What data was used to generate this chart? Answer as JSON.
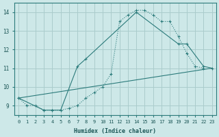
{
  "xlabel": "Humidex (Indice chaleur)",
  "background_color": "#cde8e8",
  "grid_color": "#aacccc",
  "line_color": "#2a7a7a",
  "xlim": [
    -0.5,
    23.5
  ],
  "ylim": [
    8.5,
    14.5
  ],
  "xticks": [
    0,
    1,
    2,
    3,
    4,
    5,
    6,
    7,
    8,
    9,
    10,
    11,
    12,
    13,
    14,
    15,
    16,
    17,
    18,
    19,
    20,
    21,
    22,
    23
  ],
  "yticks": [
    9,
    10,
    11,
    12,
    13,
    14
  ],
  "series1_x": [
    0,
    1,
    2,
    3,
    4,
    5,
    6,
    7,
    8,
    9,
    10,
    11,
    12,
    13,
    14,
    15,
    16,
    17,
    18,
    19,
    20,
    21,
    22
  ],
  "series1_y": [
    9.4,
    9.0,
    9.0,
    8.75,
    8.75,
    8.75,
    8.85,
    9.0,
    9.4,
    9.7,
    10.0,
    10.7,
    13.5,
    13.85,
    14.1,
    14.1,
    13.85,
    13.5,
    13.5,
    12.7,
    11.8,
    11.1,
    11.0
  ],
  "series2_x": [
    0,
    3,
    4,
    5,
    7,
    8,
    14,
    19,
    20,
    22,
    23
  ],
  "series2_y": [
    9.4,
    8.75,
    8.75,
    8.75,
    11.1,
    11.5,
    14.0,
    12.3,
    12.3,
    11.1,
    11.0
  ],
  "series3_x": [
    0,
    23
  ],
  "series3_y": [
    9.4,
    11.0
  ]
}
